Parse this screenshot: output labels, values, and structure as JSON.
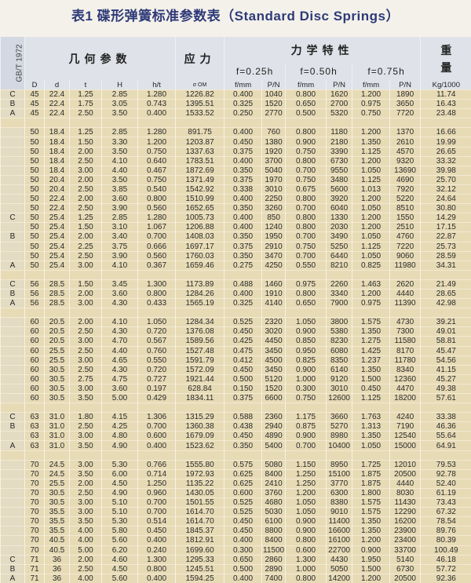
{
  "title": "表1 碟形弹簧标准参数表（Standard Disc Springs）",
  "header": {
    "standard": "GB/T 1972",
    "geometry": "几何参数",
    "stress": "应力",
    "mechanics": "力学特性",
    "weight_1": "重",
    "weight_2": "量",
    "f025": "f=0.25h",
    "f050": "f=0.50h",
    "f075": "f=0.75h",
    "columns": [
      "D",
      "d",
      "t",
      "H",
      "h/t",
      "σ OM",
      "f/mm",
      "P/N",
      "f/mm",
      "P/N",
      "f/mm",
      "P/N",
      "Kg/1000"
    ]
  },
  "rows": [
    [
      "C",
      "45",
      "22.4",
      "1.25",
      "2.85",
      "1.280",
      "1226.82",
      "0.400",
      "1040",
      "0.800",
      "1620",
      "1.200",
      "1890",
      "11.74"
    ],
    [
      "B",
      "45",
      "22.4",
      "1.75",
      "3.05",
      "0.743",
      "1395.51",
      "0.325",
      "1520",
      "0.650",
      "2700",
      "0.975",
      "3650",
      "16.43"
    ],
    [
      "A",
      "45",
      "22.4",
      "2.50",
      "3.50",
      "0.400",
      "1533.52",
      "0.250",
      "2770",
      "0.500",
      "5320",
      "0.750",
      "7720",
      "23.48"
    ],
    [],
    [
      "",
      "50",
      "18.4",
      "1.25",
      "2.85",
      "1.280",
      "891.75",
      "0.400",
      "760",
      "0.800",
      "1180",
      "1.200",
      "1370",
      "16.66"
    ],
    [
      "",
      "50",
      "18.4",
      "1.50",
      "3.30",
      "1.200",
      "1203.87",
      "0.450",
      "1380",
      "0.900",
      "2180",
      "1.350",
      "2610",
      "19.99"
    ],
    [
      "",
      "50",
      "18.4",
      "2.00",
      "3.50",
      "0.750",
      "1337.63",
      "0.375",
      "1920",
      "0.750",
      "3390",
      "1.125",
      "4570",
      "26.65"
    ],
    [
      "",
      "50",
      "18.4",
      "2.50",
      "4.10",
      "0.640",
      "1783.51",
      "0.400",
      "3700",
      "0.800",
      "6730",
      "1.200",
      "9320",
      "33.32"
    ],
    [
      "",
      "50",
      "18.4",
      "3.00",
      "4.40",
      "0.467",
      "1872.69",
      "0.350",
      "5040",
      "0.700",
      "9550",
      "1.050",
      "13690",
      "39.98"
    ],
    [
      "",
      "50",
      "20.4",
      "2.00",
      "3.50",
      "0.750",
      "1371.49",
      "0.375",
      "1970",
      "0.750",
      "3480",
      "1.125",
      "4690",
      "25.70"
    ],
    [
      "",
      "50",
      "20.4",
      "2.50",
      "3.85",
      "0.540",
      "1542.92",
      "0.338",
      "3010",
      "0.675",
      "5600",
      "1.013",
      "7920",
      "32.12"
    ],
    [
      "",
      "50",
      "22.4",
      "2.00",
      "3.60",
      "0.800",
      "1510.99",
      "0.400",
      "2250",
      "0.800",
      "3920",
      "1.200",
      "5220",
      "24.64"
    ],
    [
      "",
      "50",
      "22.4",
      "2.50",
      "3.90",
      "0.560",
      "1652.65",
      "0.350",
      "3260",
      "0.700",
      "6040",
      "1.050",
      "8510",
      "30.80"
    ],
    [
      "C",
      "50",
      "25.4",
      "1.25",
      "2.85",
      "1.280",
      "1005.73",
      "0.400",
      "850",
      "0.800",
      "1330",
      "1.200",
      "1550",
      "14.29"
    ],
    [
      "",
      "50",
      "25.4",
      "1.50",
      "3.10",
      "1.067",
      "1206.88",
      "0.400",
      "1240",
      "0.800",
      "2030",
      "1.200",
      "2510",
      "17.15"
    ],
    [
      "B",
      "50",
      "25.4",
      "2.00",
      "3.40",
      "0.700",
      "1408.03",
      "0.350",
      "1950",
      "0.700",
      "3490",
      "1.050",
      "4760",
      "22.87"
    ],
    [
      "",
      "50",
      "25.4",
      "2.25",
      "3.75",
      "0.666",
      "1697.17",
      "0.375",
      "2910",
      "0.750",
      "5250",
      "1.125",
      "7220",
      "25.73"
    ],
    [
      "",
      "50",
      "25.4",
      "2.50",
      "3.90",
      "0.560",
      "1760.03",
      "0.350",
      "3470",
      "0.700",
      "6440",
      "1.050",
      "9060",
      "28.59"
    ],
    [
      "A",
      "50",
      "25.4",
      "3.00",
      "4.10",
      "0.367",
      "1659.46",
      "0.275",
      "4250",
      "0.550",
      "8210",
      "0.825",
      "11980",
      "34.31"
    ],
    [],
    [
      "C",
      "56",
      "28.5",
      "1.50",
      "3.45",
      "1.300",
      "1173.89",
      "0.488",
      "1460",
      "0.975",
      "2260",
      "1.463",
      "2620",
      "21.49"
    ],
    [
      "B",
      "56",
      "28.5",
      "2.00",
      "3.60",
      "0.800",
      "1284.26",
      "0.400",
      "1910",
      "0.800",
      "3340",
      "1.200",
      "4440",
      "28.65"
    ],
    [
      "A",
      "56",
      "28.5",
      "3.00",
      "4.30",
      "0.433",
      "1565.19",
      "0.325",
      "4140",
      "0.650",
      "7900",
      "0.975",
      "11390",
      "42.98"
    ],
    [],
    [
      "",
      "60",
      "20.5",
      "2.00",
      "4.10",
      "1.050",
      "1284.34",
      "0.525",
      "2320",
      "1.050",
      "3800",
      "1.575",
      "4730",
      "39.21"
    ],
    [
      "",
      "60",
      "20.5",
      "2.50",
      "4.30",
      "0.720",
      "1376.08",
      "0.450",
      "3020",
      "0.900",
      "5380",
      "1.350",
      "7300",
      "49.01"
    ],
    [
      "",
      "60",
      "20.5",
      "3.00",
      "4.70",
      "0.567",
      "1589.56",
      "0.425",
      "4450",
      "0.850",
      "8230",
      "1.275",
      "11580",
      "58.81"
    ],
    [
      "",
      "60",
      "25.5",
      "2.50",
      "4.40",
      "0.760",
      "1527.48",
      "0.475",
      "3450",
      "0.950",
      "6080",
      "1.425",
      "8170",
      "45.47"
    ],
    [
      "",
      "60",
      "25.5",
      "3.00",
      "4.65",
      "0.550",
      "1591.79",
      "0.412",
      "4500",
      "0.825",
      "8350",
      "1.237",
      "11780",
      "54.56"
    ],
    [
      "",
      "60",
      "30.5",
      "2.50",
      "4.30",
      "0.720",
      "1572.09",
      "0.450",
      "3450",
      "0.900",
      "6140",
      "1.350",
      "8340",
      "41.15"
    ],
    [
      "",
      "60",
      "30.5",
      "2.75",
      "4.75",
      "0.727",
      "1921.44",
      "0.500",
      "5120",
      "1.000",
      "9120",
      "1.500",
      "12360",
      "45.27"
    ],
    [
      "",
      "60",
      "30.5",
      "3.00",
      "3.60",
      "0.197",
      "628.84",
      "0.150",
      "1520",
      "0.300",
      "3010",
      "0.450",
      "4470",
      "49.38"
    ],
    [
      "",
      "60",
      "30.5",
      "3.50",
      "5.00",
      "0.429",
      "1834.11",
      "0.375",
      "6600",
      "0.750",
      "12600",
      "1.125",
      "18200",
      "57.61"
    ],
    [],
    [
      "C",
      "63",
      "31.0",
      "1.80",
      "4.15",
      "1.306",
      "1315.29",
      "0.588",
      "2360",
      "1.175",
      "3660",
      "1.763",
      "4240",
      "33.38"
    ],
    [
      "B",
      "63",
      "31.0",
      "2.50",
      "4.25",
      "0.700",
      "1360.38",
      "0.438",
      "2940",
      "0.875",
      "5270",
      "1.313",
      "7190",
      "46.36"
    ],
    [
      "",
      "63",
      "31.0",
      "3.00",
      "4.80",
      "0.600",
      "1679.09",
      "0.450",
      "4890",
      "0.900",
      "8980",
      "1.350",
      "12540",
      "55.64"
    ],
    [
      "A",
      "63",
      "31.0",
      "3.50",
      "4.90",
      "0.400",
      "1523.62",
      "0.350",
      "5400",
      "0.700",
      "10400",
      "1.050",
      "15000",
      "64.91"
    ],
    [],
    [
      "",
      "70",
      "24.5",
      "3.00",
      "5.30",
      "0.766",
      "1555.80",
      "0.575",
      "5080",
      "1.150",
      "8950",
      "1.725",
      "12010",
      "79.53"
    ],
    [
      "",
      "70",
      "24.5",
      "3.50",
      "6.00",
      "0.714",
      "1972.93",
      "0.625",
      "8400",
      "1.250",
      "15100",
      "1.875",
      "20500",
      "92.78"
    ],
    [
      "",
      "70",
      "25.5",
      "2.00",
      "4.50",
      "1.250",
      "1135.22",
      "0.625",
      "2410",
      "1.250",
      "3770",
      "1.875",
      "4440",
      "52.40"
    ],
    [
      "",
      "70",
      "30.5",
      "2.50",
      "4.90",
      "0.960",
      "1430.05",
      "0.600",
      "3760",
      "1.200",
      "6300",
      "1.800",
      "8030",
      "61.19"
    ],
    [
      "",
      "70",
      "30.5",
      "3.00",
      "5.10",
      "0.700",
      "1501.55",
      "0.525",
      "4680",
      "1.050",
      "8380",
      "1.575",
      "11430",
      "73.43"
    ],
    [
      "",
      "70",
      "35.5",
      "3.00",
      "5.10",
      "0.700",
      "1614.70",
      "0.525",
      "5030",
      "1.050",
      "9010",
      "1.575",
      "12290",
      "67.32"
    ],
    [
      "",
      "70",
      "35.5",
      "3.50",
      "5.30",
      "0.514",
      "1614.70",
      "0.450",
      "6100",
      "0.900",
      "11400",
      "1.350",
      "16200",
      "78.54"
    ],
    [
      "",
      "70",
      "35.5",
      "4.00",
      "5.80",
      "0.450",
      "1845.37",
      "0.450",
      "8800",
      "0.900",
      "16600",
      "1.350",
      "23900",
      "89.76"
    ],
    [
      "",
      "70",
      "40.5",
      "4.00",
      "5.60",
      "0.400",
      "1812.91",
      "0.400",
      "8400",
      "0.800",
      "16100",
      "1.200",
      "23400",
      "80.39"
    ],
    [
      "",
      "70",
      "40.5",
      "5.00",
      "6.20",
      "0.240",
      "1699.60",
      "0.300",
      "11500",
      "0.600",
      "22700",
      "0.900",
      "33700",
      "100.49"
    ],
    [
      "C",
      "71",
      "36",
      "2.00",
      "4.60",
      "1.300",
      "1295.33",
      "0.650",
      "2860",
      "1.300",
      "4430",
      "1.950",
      "5140",
      "46.18"
    ],
    [
      "B",
      "71",
      "36",
      "2.50",
      "4.50",
      "0.800",
      "1245.51",
      "0.500",
      "2890",
      "1.000",
      "5050",
      "1.500",
      "6730",
      "57.72"
    ],
    [
      "A",
      "71",
      "36",
      "4.00",
      "5.60",
      "0.400",
      "1594.25",
      "0.400",
      "7400",
      "0.800",
      "14200",
      "1.200",
      "20500",
      "92.36"
    ]
  ]
}
